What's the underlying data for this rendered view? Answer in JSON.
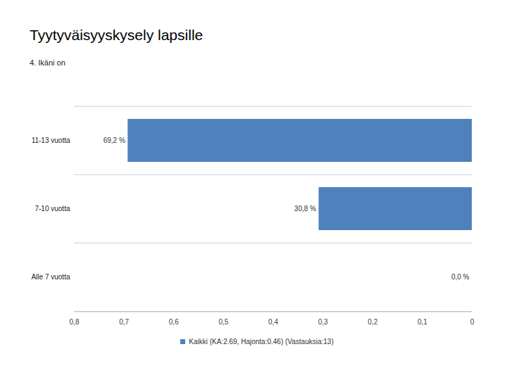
{
  "chart_data": {
    "type": "bar",
    "title": "Tyytyväisyyskysely lapsille",
    "subtitle": "4. Ikäni on",
    "orientation": "horizontal",
    "categories": [
      "11-13 vuotta",
      "7-10 vuotta",
      "Alle 7 vuotta"
    ],
    "series": [
      {
        "name": "Kaikki (KA:2.69, Hajonta:0.46) (Vastauksia:13)",
        "color": "#4f81bd",
        "values": [
          0.692,
          0.308,
          0.0
        ],
        "value_labels": [
          "69,2 %",
          "30,8 %",
          "0,0 %"
        ]
      }
    ],
    "xlim": [
      0.8,
      0
    ],
    "xticks": [
      {
        "value": 0.8,
        "label": "0,8"
      },
      {
        "value": 0.7,
        "label": "0,7"
      },
      {
        "value": 0.6,
        "label": "0,6"
      },
      {
        "value": 0.5,
        "label": "0,5"
      },
      {
        "value": 0.4,
        "label": "0,4"
      },
      {
        "value": 0.3,
        "label": "0,3"
      },
      {
        "value": 0.2,
        "label": "0,2"
      },
      {
        "value": 0.1,
        "label": "0,1"
      },
      0
    ],
    "grid": true,
    "data_labels": true,
    "legend": "bottom"
  }
}
